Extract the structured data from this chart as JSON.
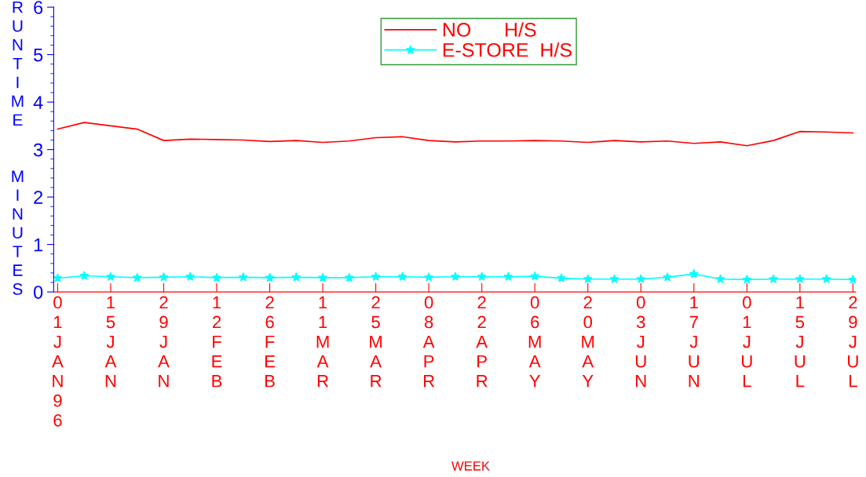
{
  "chart_data": {
    "type": "line",
    "categories": [
      "01JAN96",
      null,
      "15JAN",
      null,
      "29JAN",
      null,
      "12FEB",
      null,
      "26FEB",
      null,
      "11MAR",
      null,
      "25MAR",
      null,
      "08APR",
      null,
      "22APR",
      null,
      "06MAY",
      null,
      "20MAY",
      null,
      "03JUN",
      null,
      "17JUN",
      null,
      "01JUL",
      null,
      "15JUL",
      null,
      "29JUL"
    ],
    "series": [
      {
        "name": "NO      H/S",
        "color": "#ff0000",
        "marker": "none",
        "values": [
          3.43,
          3.57,
          3.5,
          3.43,
          3.19,
          3.22,
          3.21,
          3.2,
          3.17,
          3.19,
          3.15,
          3.18,
          3.25,
          3.27,
          3.19,
          3.16,
          3.18,
          3.18,
          3.19,
          3.18,
          3.15,
          3.19,
          3.16,
          3.18,
          3.13,
          3.16,
          3.08,
          3.19,
          3.38,
          3.37,
          3.35
        ]
      },
      {
        "name": "E-STORE  H/S",
        "color": "#00ffff",
        "marker": "star",
        "values": [
          0.29,
          0.34,
          0.32,
          0.3,
          0.31,
          0.32,
          0.3,
          0.31,
          0.3,
          0.31,
          0.3,
          0.3,
          0.32,
          0.32,
          0.31,
          0.32,
          0.32,
          0.32,
          0.33,
          0.29,
          0.27,
          0.27,
          0.27,
          0.31,
          0.38,
          0.27,
          0.26,
          0.27,
          0.27,
          0.27,
          0.26
        ]
      }
    ],
    "xlabel": "WEEK",
    "ylabel": "RUNTIME  MINUTES",
    "ylim": [
      0,
      6
    ],
    "yticks": [
      0,
      1,
      2,
      3,
      4,
      5,
      6
    ],
    "grid": false,
    "legend": "top",
    "line_style": "solid"
  }
}
